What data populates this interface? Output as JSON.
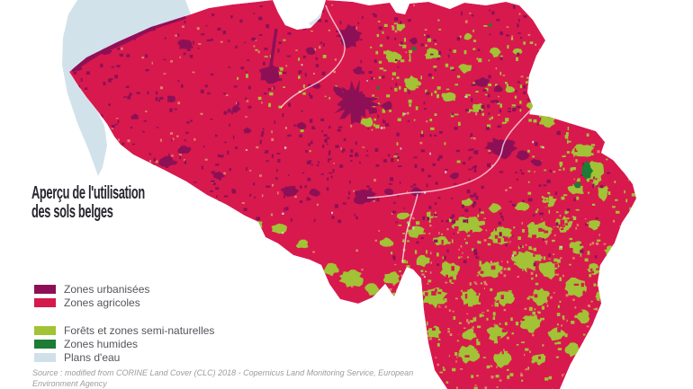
{
  "title": {
    "line1": "Aperçu de l'utilisation",
    "line2": "des sols belges"
  },
  "legend": {
    "groups": [
      {
        "items": [
          {
            "label": "Zones urbanisées",
            "color": "#8d1057"
          },
          {
            "label": "Zones agricoles",
            "color": "#d4194b"
          }
        ]
      },
      {
        "items": [
          {
            "label": "Forêts et zones semi-naturelles",
            "color": "#a1c335"
          },
          {
            "label": "Zones humides",
            "color": "#1d7c35"
          },
          {
            "label": "Plans d'eau",
            "color": "#cfe0e9"
          }
        ]
      }
    ]
  },
  "source": {
    "line1": "Source : modified from CORINE Land Cover (CLC) 2018 - Copernicus Land Monitoring Service, European",
    "line2": "Environment Agency"
  },
  "map": {
    "description": "Land cover map of Belgium",
    "colors": {
      "urban": "#8d1057",
      "agricultural": "#d8194d",
      "forest": "#a1c335",
      "wetland": "#1d7c35",
      "water": "#cfe0e9",
      "bare": "#de9a68",
      "river": "#ffffff"
    }
  }
}
